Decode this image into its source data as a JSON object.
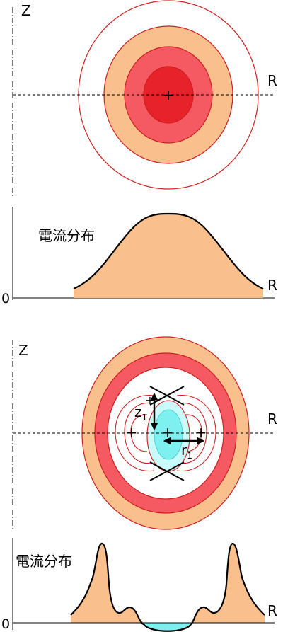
{
  "colors": {
    "contour_line": "#cc1f1f",
    "level_1": "#ffffff",
    "level_2": "#f9c08d",
    "level_3": "#f55a63",
    "level_4": "#e8222a",
    "negative_fill": "#7ff0f0",
    "negative_outer": "#c9fbfb",
    "current_fill": "#f9c08d",
    "axis": "#000000"
  },
  "top_panel": {
    "axis_z": "Z",
    "axis_r": "R",
    "o_point_marker": "+"
  },
  "top_current": {
    "title": "電流分布",
    "origin": "0",
    "axis_r": "R"
  },
  "bottom_panel": {
    "axis_z": "Z",
    "axis_r": "R",
    "center_marker": "+",
    "left_marker": "+",
    "right_marker": "+",
    "inner_marker": "+",
    "z_symbol": "z",
    "z_subscript": "1",
    "r_symbol": "r",
    "r_subscript": "1"
  },
  "bottom_current": {
    "title": "電流分布",
    "origin": "0",
    "axis_r": "R"
  }
}
